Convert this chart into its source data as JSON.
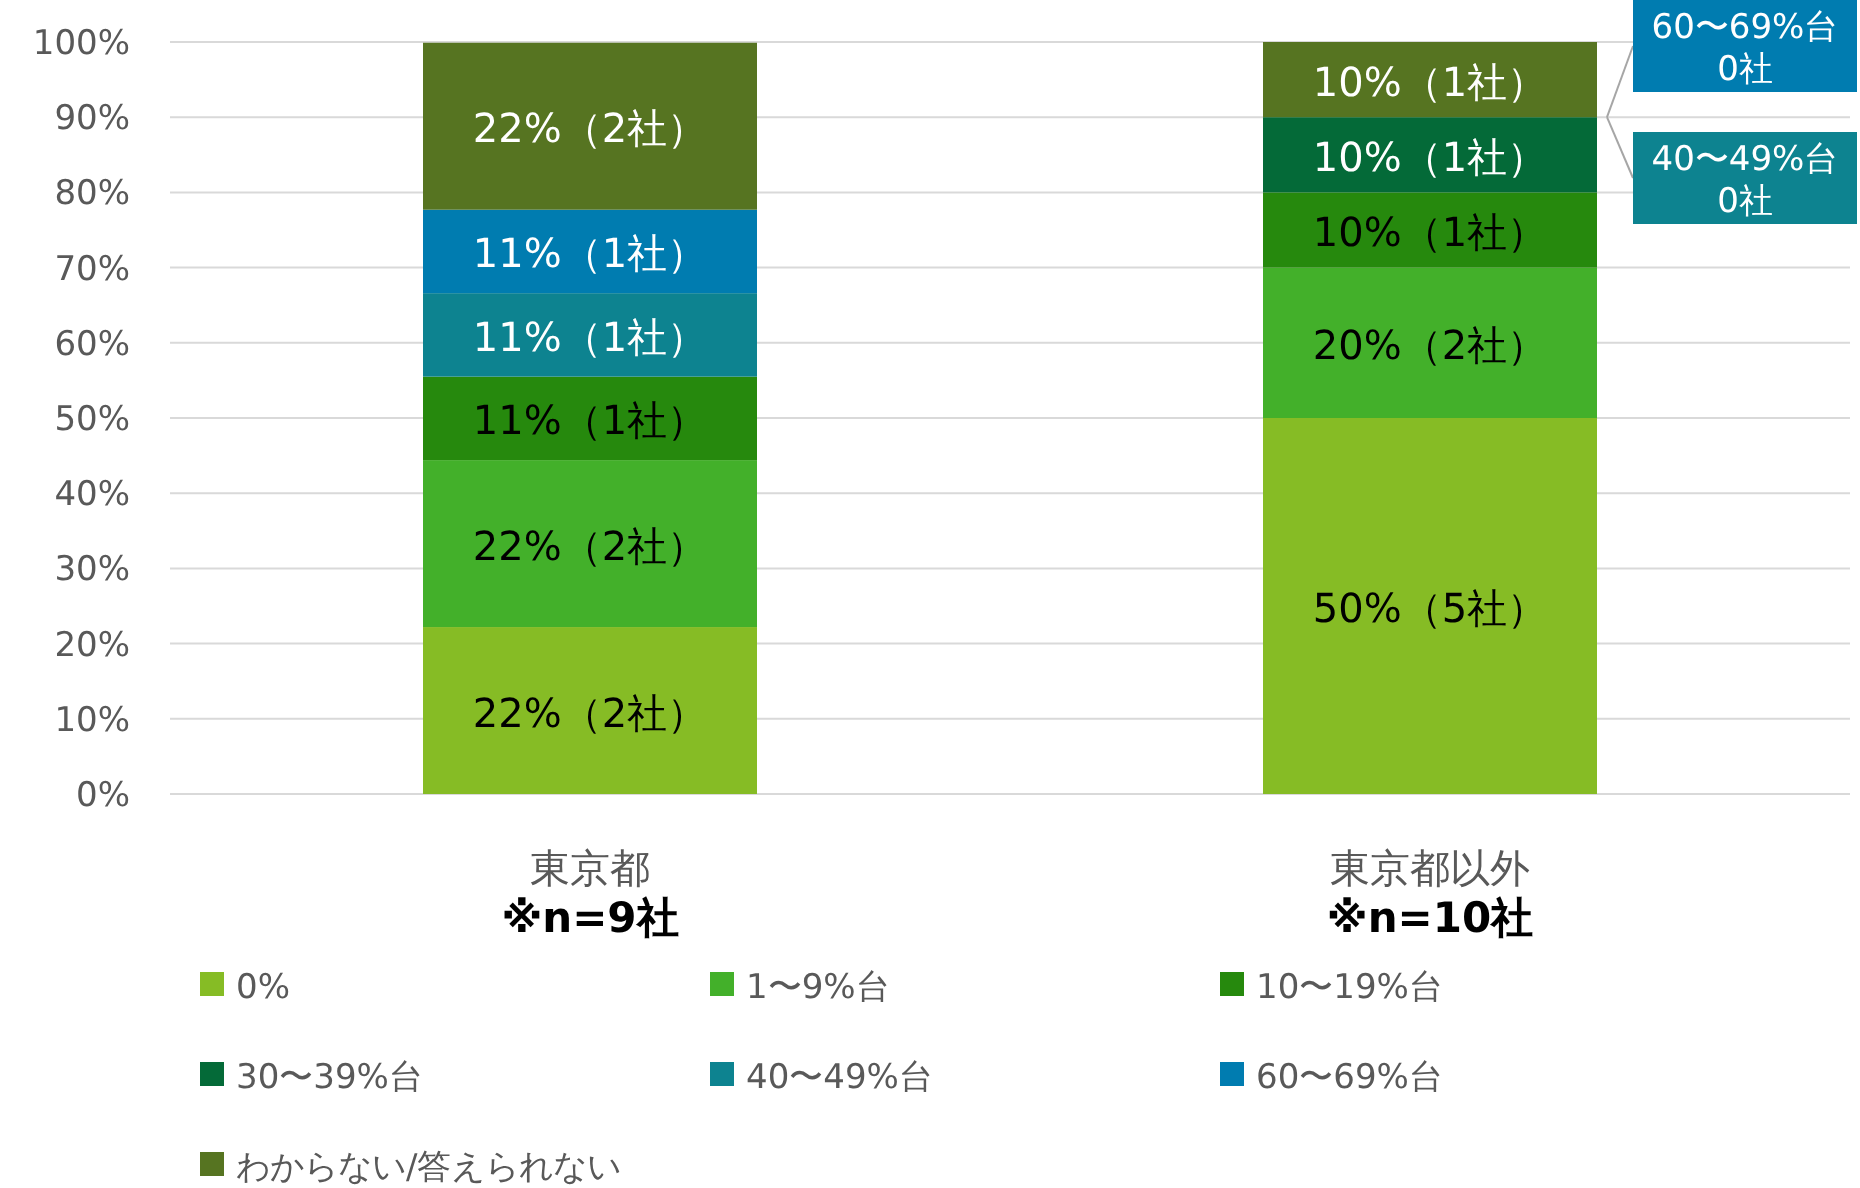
{
  "chart_data": {
    "type": "bar",
    "stacked": true,
    "categories": [
      "東京都\n※n=9社",
      "東京都以外\n※n=10社"
    ],
    "ylim": [
      0,
      100
    ],
    "yticks": [
      {
        "value": 0,
        "label": "0%"
      },
      {
        "value": 10,
        "label": "10%"
      },
      {
        "value": 20,
        "label": "20%"
      },
      {
        "value": 30,
        "label": "30%"
      },
      {
        "value": 40,
        "label": "40%"
      },
      {
        "value": 50,
        "label": "50%"
      },
      {
        "value": 60,
        "label": "60%"
      },
      {
        "value": 70,
        "label": "70%"
      },
      {
        "value": 80,
        "label": "80%"
      },
      {
        "value": 90,
        "label": "90%"
      },
      {
        "value": 100,
        "label": "100%"
      }
    ],
    "grid": "y",
    "legend": "bottom",
    "annotations": [
      "60〜69%台\n0社",
      "40〜49%台\n0社"
    ],
    "series": [
      {
        "name": "0%",
        "color": "#86bc25",
        "values": [
          22.2,
          50
        ],
        "value_labels": [
          "22%（2社）",
          "50%（5社）"
        ]
      },
      {
        "name": "1〜9%台",
        "color": "#43b02a",
        "values": [
          22.2,
          20
        ],
        "value_labels": [
          "22%（2社）",
          "20%（2社）"
        ]
      },
      {
        "name": "10〜19%台",
        "color": "#26890d",
        "values": [
          11.1,
          10
        ],
        "value_labels": [
          "11%（1社）",
          "10%（1社）"
        ]
      },
      {
        "name": "30〜39%台",
        "color": "#046a38",
        "values": [
          0,
          10
        ],
        "value_labels": [
          null,
          "10%（1社）"
        ]
      },
      {
        "name": "40〜49%台",
        "color": "#0d8390",
        "values": [
          11.1,
          0
        ],
        "value_labels": [
          "11%（1社）",
          null
        ]
      },
      {
        "name": "60〜69%台",
        "color": "#007cb0",
        "values": [
          11.1,
          0
        ],
        "value_labels": [
          "11%（1社）",
          null
        ]
      },
      {
        "name": "わからない/答えられない",
        "color": "#567421",
        "values": [
          22.2,
          10
        ],
        "value_labels": [
          "22%（2社）",
          "10%（1社）"
        ]
      }
    ]
  }
}
